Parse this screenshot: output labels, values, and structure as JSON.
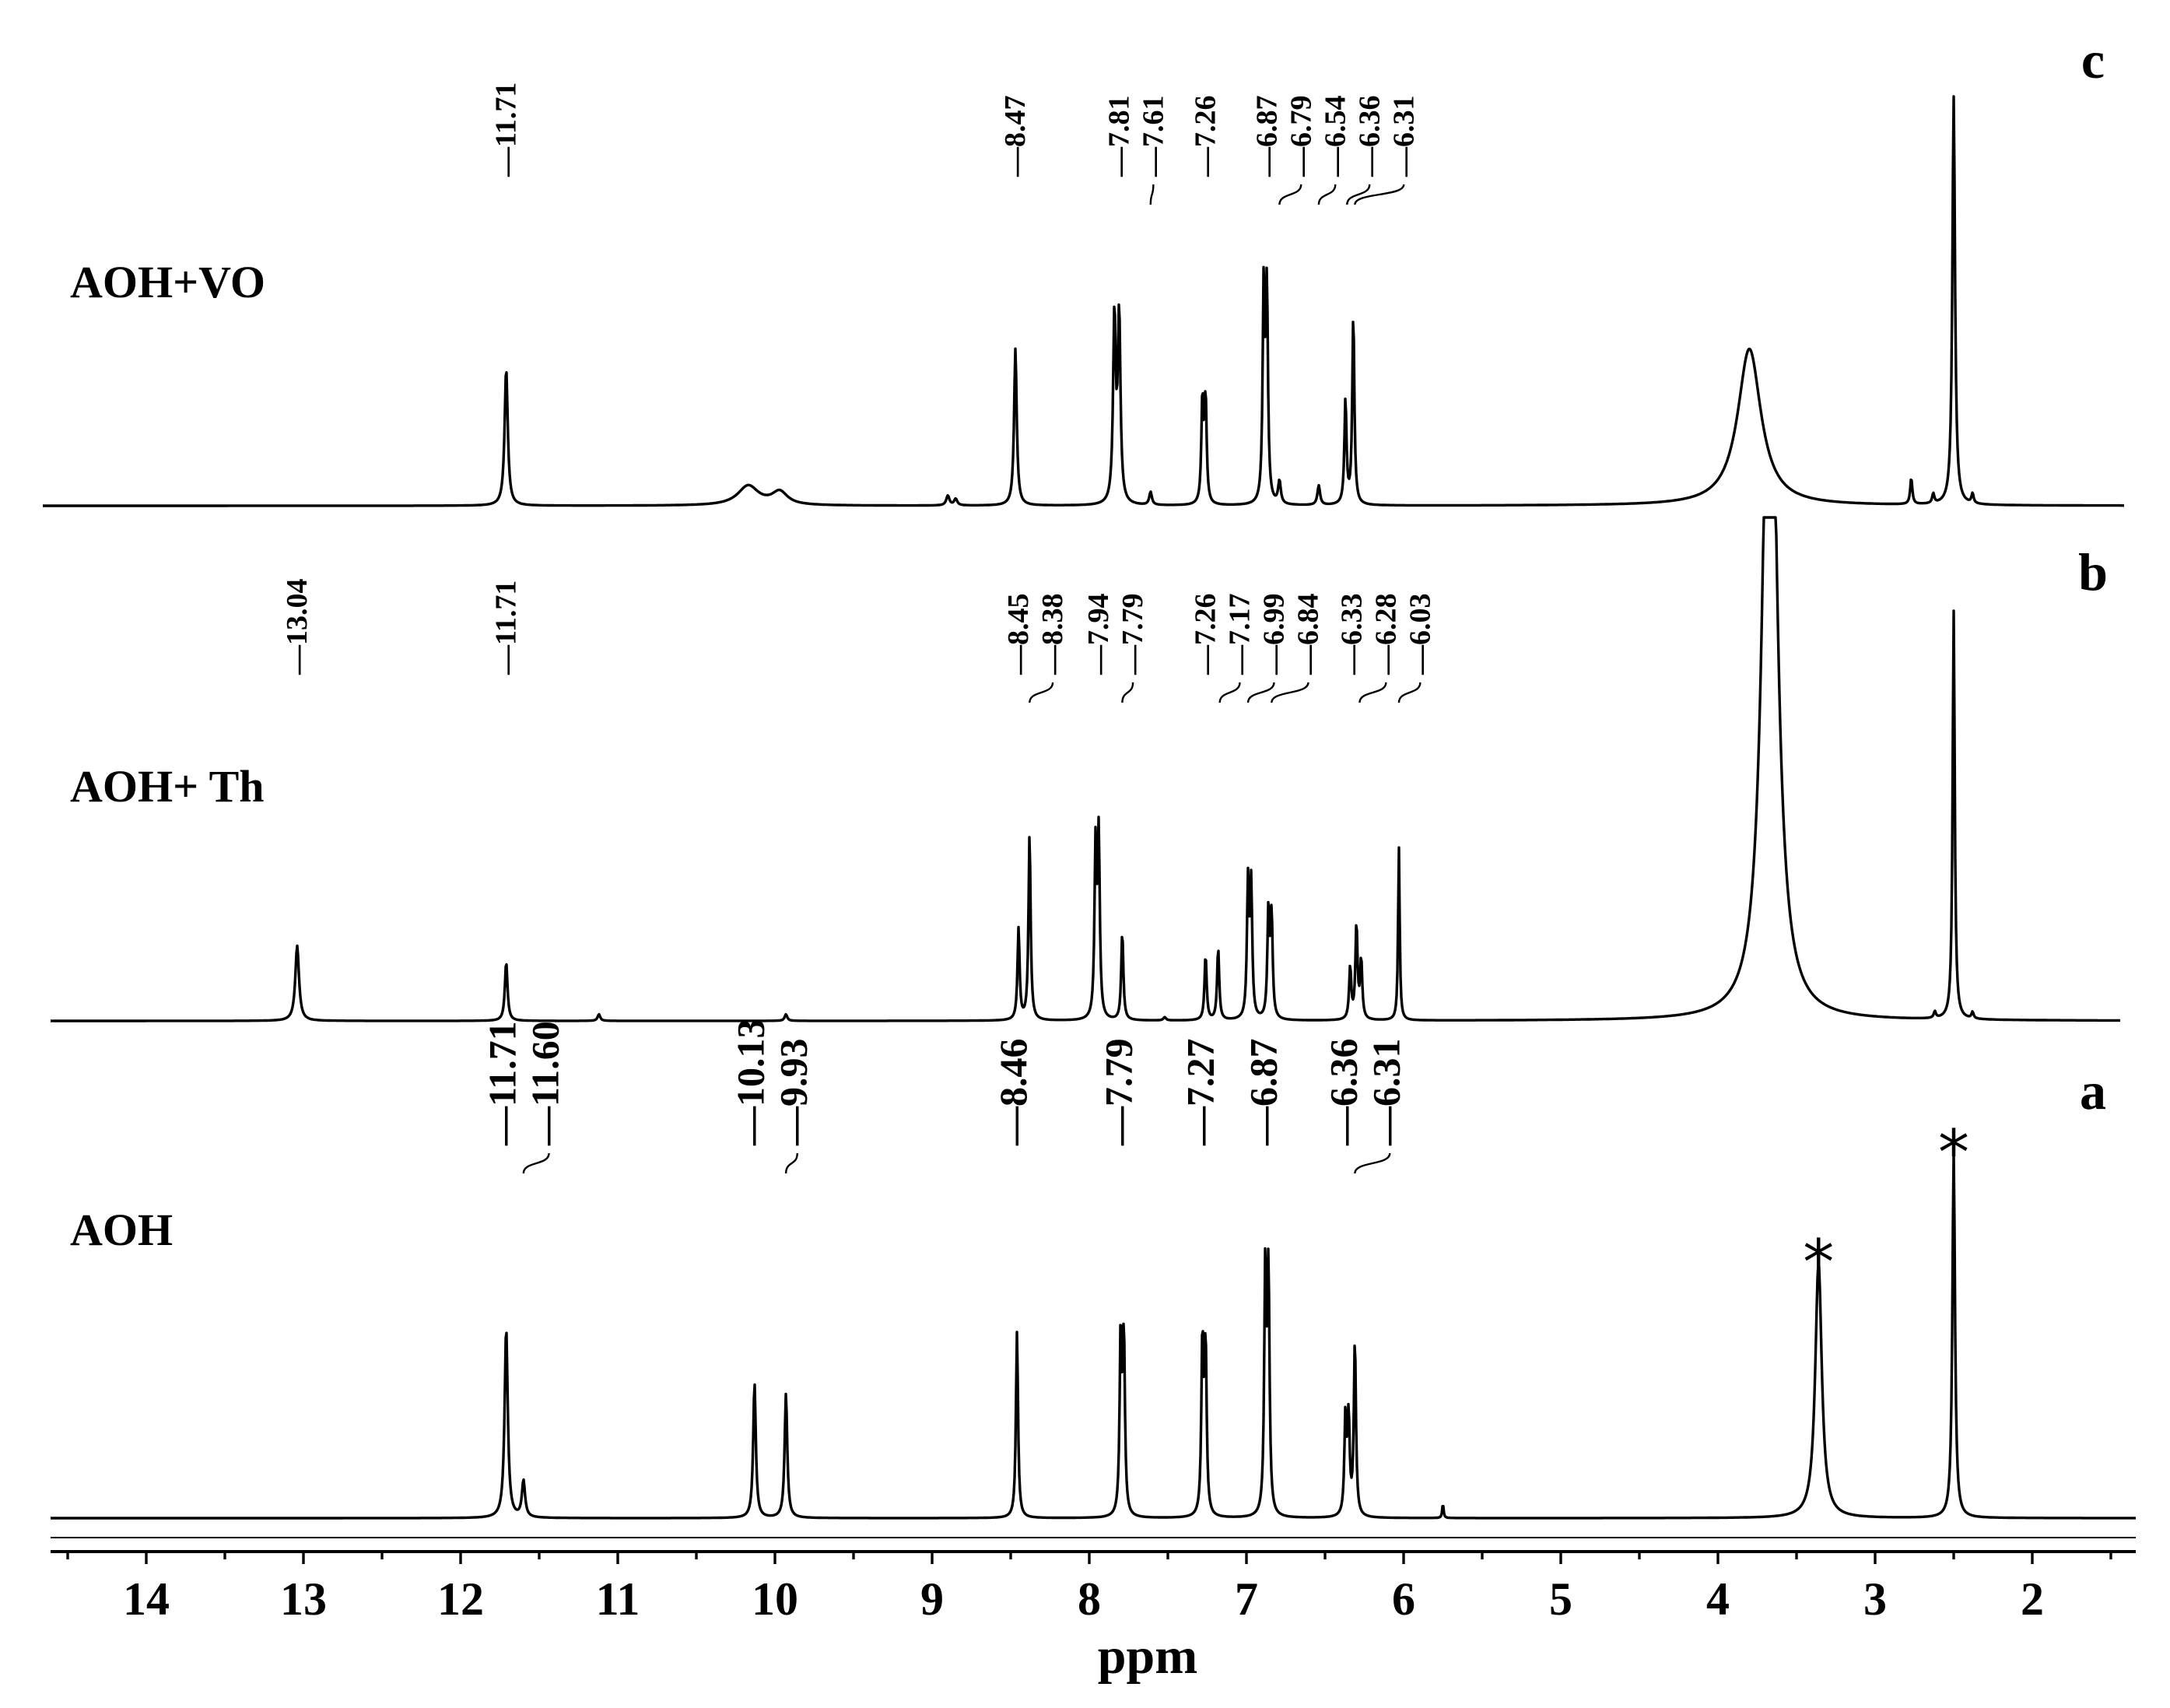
{
  "chart_data": {
    "type": "line",
    "xlabel": "ppm",
    "x_ticks": [
      "14",
      "13",
      "12",
      "11",
      "10",
      "9",
      "8",
      "7",
      "6",
      "5",
      "4",
      "3",
      "2"
    ],
    "xlim": [
      14.6,
      1.4
    ],
    "x_reversed": true,
    "series": [
      {
        "letter": "c",
        "name": "AOH+VO",
        "peak_labels": [
          "11.71",
          "8.47",
          "7.81",
          "7.61",
          "7.26",
          "6.87",
          "6.79",
          "6.54",
          "6.36",
          "6.31"
        ],
        "peaks": [
          {
            "ppm": 11.71,
            "height": 0.42,
            "width": 0.012
          },
          {
            "ppm": 10.17,
            "height": 0.06,
            "width": 0.08
          },
          {
            "ppm": 9.97,
            "height": 0.04,
            "width": 0.06
          },
          {
            "ppm": 8.9,
            "height": 0.03,
            "width": 0.012
          },
          {
            "ppm": 8.85,
            "height": 0.02,
            "width": 0.012
          },
          {
            "ppm": 8.47,
            "height": 0.48,
            "width": 0.01
          },
          {
            "ppm": 7.84,
            "height": 0.57,
            "width": 0.01
          },
          {
            "ppm": 7.81,
            "height": 0.57,
            "width": 0.01
          },
          {
            "ppm": 7.61,
            "height": 0.04,
            "width": 0.01
          },
          {
            "ppm": 7.28,
            "height": 0.32,
            "width": 0.008
          },
          {
            "ppm": 7.26,
            "height": 0.32,
            "width": 0.008
          },
          {
            "ppm": 6.89,
            "height": 0.66,
            "width": 0.008
          },
          {
            "ppm": 6.87,
            "height": 0.64,
            "width": 0.008
          },
          {
            "ppm": 6.79,
            "height": 0.07,
            "width": 0.01
          },
          {
            "ppm": 6.54,
            "height": 0.06,
            "width": 0.01
          },
          {
            "ppm": 6.37,
            "height": 0.32,
            "width": 0.008
          },
          {
            "ppm": 6.32,
            "height": 0.58,
            "width": 0.008
          },
          {
            "ppm": 3.8,
            "height": 0.48,
            "width": 0.09
          },
          {
            "ppm": 2.77,
            "height": 0.08,
            "width": 0.008
          },
          {
            "ppm": 2.63,
            "height": 0.03,
            "width": 0.008
          },
          {
            "ppm": 2.5,
            "height": 1.25,
            "width": 0.01
          },
          {
            "ppm": 2.38,
            "height": 0.03,
            "width": 0.008
          }
        ]
      },
      {
        "letter": "b",
        "name": "AOH+ Th",
        "peak_labels": [
          "13.04",
          "11.71",
          "8.45",
          "8.38",
          "7.94",
          "7.79",
          "7.26",
          "7.17",
          "6.99",
          "6.84",
          "6.33",
          "6.28",
          "6.03"
        ],
        "peaks": [
          {
            "ppm": 13.04,
            "height": 0.23,
            "width": 0.014
          },
          {
            "ppm": 11.71,
            "height": 0.18,
            "width": 0.01
          },
          {
            "ppm": 11.12,
            "height": 0.02,
            "width": 0.01
          },
          {
            "ppm": 9.93,
            "height": 0.02,
            "width": 0.01
          },
          {
            "ppm": 8.45,
            "height": 0.28,
            "width": 0.008
          },
          {
            "ppm": 8.38,
            "height": 0.57,
            "width": 0.008
          },
          {
            "ppm": 7.96,
            "height": 0.52,
            "width": 0.008
          },
          {
            "ppm": 7.94,
            "height": 0.55,
            "width": 0.008
          },
          {
            "ppm": 7.79,
            "height": 0.27,
            "width": 0.008
          },
          {
            "ppm": 7.52,
            "height": 0.01,
            "width": 0.01
          },
          {
            "ppm": 7.26,
            "height": 0.2,
            "width": 0.008
          },
          {
            "ppm": 7.18,
            "height": 0.22,
            "width": 0.008
          },
          {
            "ppm": 6.99,
            "height": 0.41,
            "width": 0.008
          },
          {
            "ppm": 6.97,
            "height": 0.4,
            "width": 0.008
          },
          {
            "ppm": 6.86,
            "height": 0.33,
            "width": 0.008
          },
          {
            "ppm": 6.84,
            "height": 0.31,
            "width": 0.008
          },
          {
            "ppm": 6.34,
            "height": 0.16,
            "width": 0.008
          },
          {
            "ppm": 6.3,
            "height": 0.29,
            "width": 0.008
          },
          {
            "ppm": 6.27,
            "height": 0.18,
            "width": 0.008
          },
          {
            "ppm": 6.03,
            "height": 0.53,
            "width": 0.006
          },
          {
            "ppm": 3.67,
            "height": 2.5,
            "width": 0.05
          },
          {
            "ppm": 2.62,
            "height": 0.02,
            "width": 0.008
          },
          {
            "ppm": 2.5,
            "height": 1.25,
            "width": 0.008
          },
          {
            "ppm": 2.38,
            "height": 0.02,
            "width": 0.008
          }
        ]
      },
      {
        "letter": "a",
        "name": "AOH",
        "peak_labels": [
          "11.71",
          "11.60",
          "10.13",
          "9.93",
          "8.46",
          "7.79",
          "7.27",
          "6.87",
          "6.36",
          "6.31"
        ],
        "stars_at_ppm": [
          3.36,
          2.5
        ],
        "peaks": [
          {
            "ppm": 11.71,
            "height": 0.52,
            "width": 0.012
          },
          {
            "ppm": 11.6,
            "height": 0.1,
            "width": 0.012
          },
          {
            "ppm": 10.13,
            "height": 0.37,
            "width": 0.01
          },
          {
            "ppm": 9.93,
            "height": 0.34,
            "width": 0.01
          },
          {
            "ppm": 8.46,
            "height": 0.51,
            "width": 0.008
          },
          {
            "ppm": 7.8,
            "height": 0.5,
            "width": 0.008
          },
          {
            "ppm": 7.78,
            "height": 0.48,
            "width": 0.008
          },
          {
            "ppm": 7.28,
            "height": 0.48,
            "width": 0.008
          },
          {
            "ppm": 7.26,
            "height": 0.46,
            "width": 0.008
          },
          {
            "ppm": 6.88,
            "height": 0.67,
            "width": 0.008
          },
          {
            "ppm": 6.86,
            "height": 0.65,
            "width": 0.008
          },
          {
            "ppm": 6.37,
            "height": 0.27,
            "width": 0.008
          },
          {
            "ppm": 6.35,
            "height": 0.26,
            "width": 0.008
          },
          {
            "ppm": 6.31,
            "height": 0.48,
            "width": 0.008
          },
          {
            "ppm": 5.75,
            "height": 0.04,
            "width": 0.005
          },
          {
            "ppm": 3.36,
            "height": 0.7,
            "width": 0.025
          },
          {
            "ppm": 2.5,
            "height": 1.0,
            "width": 0.01
          }
        ]
      }
    ]
  }
}
